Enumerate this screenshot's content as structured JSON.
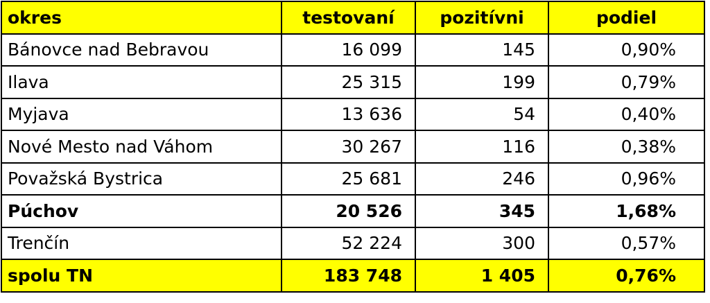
{
  "table": {
    "header": [
      "okres",
      "testovaní",
      "pozitívni",
      "podiel"
    ],
    "rows": [
      [
        "Bánovce nad Bebravou",
        "16 099",
        "145",
        "0,90%"
      ],
      [
        "Ilava",
        "25 315",
        "199",
        "0,79%"
      ],
      [
        "Myjava",
        "13 636",
        "54",
        "0,40%"
      ],
      [
        "Nové Mesto nad Váhom",
        "30 267",
        "116",
        "0,38%"
      ],
      [
        "Považská Bystrica",
        "25 681",
        "246",
        "0,96%"
      ],
      [
        "Púchov",
        "20 526",
        "345",
        "1,68%"
      ],
      [
        "Trenčín",
        "52 224",
        "300",
        "0,57%"
      ],
      [
        "spolu TN",
        "183 748",
        "1 405",
        "0,76%"
      ]
    ]
  }
}
